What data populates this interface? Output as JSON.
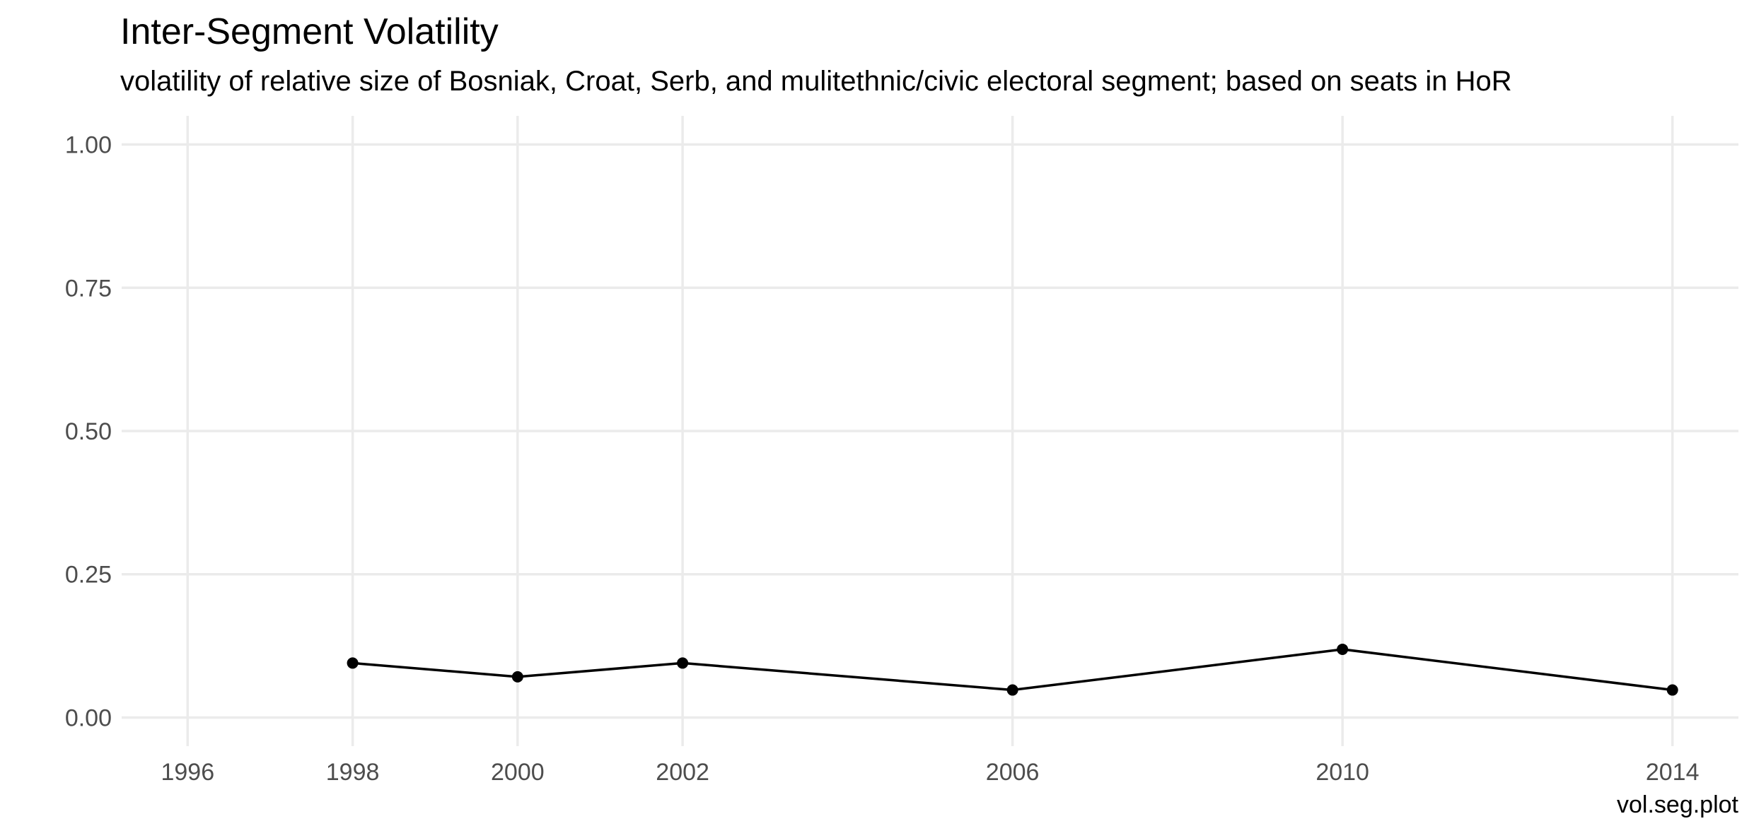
{
  "chart_data": {
    "type": "line",
    "title": "Inter-Segment Volatility",
    "subtitle": "volatility of relative size of Bosniak, Croat, Serb, and mulitethnic/civic electoral segment; based on seats in HoR",
    "caption": "vol.seg.plot",
    "xlabel": "",
    "ylabel": "",
    "x_ticks": [
      1996,
      1998,
      2000,
      2002,
      2006,
      2010,
      2014
    ],
    "y_ticks": [
      "0.00",
      "0.25",
      "0.50",
      "0.75",
      "1.00"
    ],
    "xlim": [
      1995.2,
      2014.8
    ],
    "ylim": [
      -0.05,
      1.05
    ],
    "grid": true,
    "legend": "none",
    "series": [
      {
        "x": [
          1998,
          2000,
          2002,
          2006,
          2010,
          2014
        ],
        "y": [
          0.095,
          0.071,
          0.095,
          0.048,
          0.119,
          0.048
        ],
        "color": "#000000"
      }
    ]
  }
}
